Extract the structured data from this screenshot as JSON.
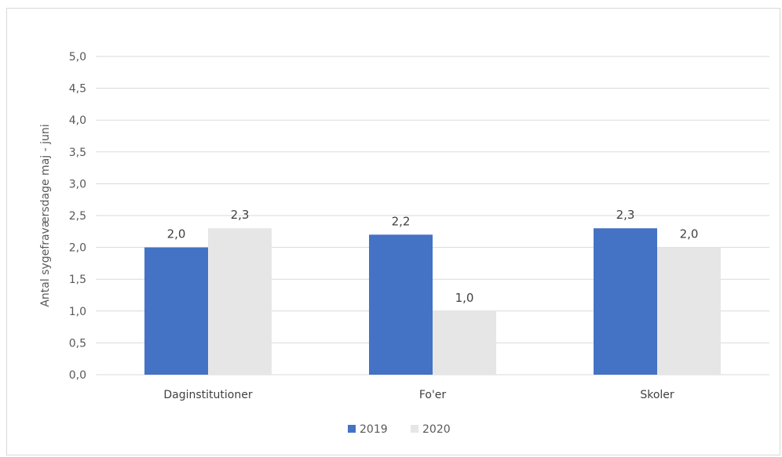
{
  "chart_data": {
    "type": "bar",
    "categories": [
      "Daginstitutioner",
      "Fo'er",
      "Skoler"
    ],
    "series": [
      {
        "name": "2019",
        "values": [
          2.0,
          2.2,
          2.3
        ],
        "value_labels": [
          "2,0",
          "2,2",
          "2,3"
        ],
        "color": "#4472c4"
      },
      {
        "name": "2020",
        "values": [
          2.3,
          1.0,
          2.0
        ],
        "value_labels": [
          "2,3",
          "1,0",
          "2,0"
        ],
        "color": "#e7e6e6"
      }
    ],
    "title": "",
    "xlabel": "",
    "ylabel": "Antal sygefraværsdage maj - juni",
    "ylim": [
      0,
      5
    ],
    "yticks": [
      0,
      0.5,
      1,
      1.5,
      2,
      2.5,
      3,
      3.5,
      4,
      4.5,
      5
    ],
    "ytick_labels": [
      "0,0",
      "0,5",
      "1,0",
      "1,5",
      "2,0",
      "2,5",
      "3,0",
      "3,5",
      "4,0",
      "4,5",
      "5,0"
    ],
    "grid": true,
    "gridline_color": "#d9d9d9",
    "legend_position": "bottom"
  }
}
